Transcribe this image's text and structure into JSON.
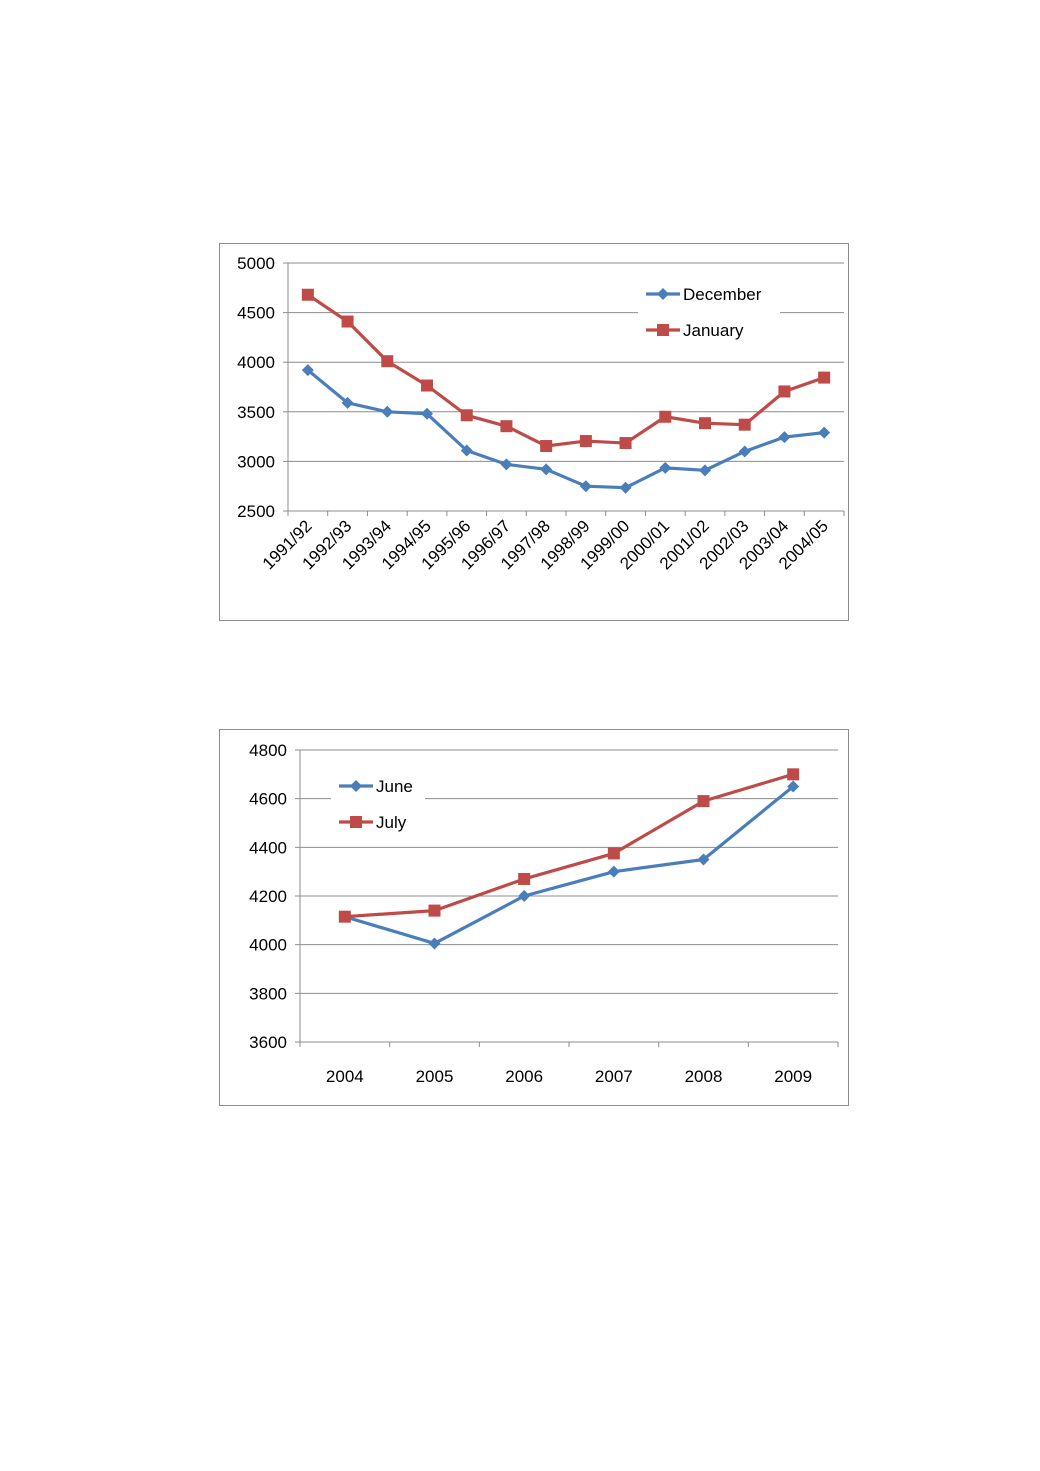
{
  "chart_data": [
    {
      "type": "line",
      "categories": [
        "1991/92",
        "1992/93",
        "1993/94",
        "1994/95",
        "1995/96",
        "1996/97",
        "1997/98",
        "1998/99",
        "1999/00",
        "2000/01",
        "2001/02",
        "2002/03",
        "2003/04",
        "2004/05"
      ],
      "series": [
        {
          "name": "December",
          "color": "#4a7ebb",
          "marker": "diamond",
          "values": [
            3920,
            3590,
            3500,
            3480,
            3110,
            2970,
            2920,
            2750,
            2735,
            2935,
            2910,
            3100,
            3245,
            3290
          ]
        },
        {
          "name": "January",
          "color": "#be4b48",
          "marker": "square",
          "values": [
            4680,
            4410,
            4010,
            3765,
            3465,
            3355,
            3155,
            3205,
            3185,
            3450,
            3385,
            3370,
            3705,
            3845
          ]
        }
      ],
      "ylim": [
        2500,
        5000
      ],
      "yticks": [
        2500,
        3000,
        3500,
        4000,
        4500,
        5000
      ],
      "grid": true,
      "legend_position": "top-right",
      "xlabel_rotation": "45-degree"
    },
    {
      "type": "line",
      "categories": [
        "2004",
        "2005",
        "2006",
        "2007",
        "2008",
        "2009"
      ],
      "series": [
        {
          "name": "June",
          "color": "#4a7ebb",
          "marker": "diamond",
          "values": [
            4115,
            4005,
            4200,
            4300,
            4350,
            4650
          ]
        },
        {
          "name": "July",
          "color": "#be4b48",
          "marker": "square",
          "values": [
            4115,
            4140,
            4270,
            4375,
            4590,
            4700
          ]
        }
      ],
      "ylim": [
        3600,
        4800
      ],
      "yticks": [
        3600,
        3800,
        4000,
        4200,
        4400,
        4600,
        4800
      ],
      "grid": true,
      "legend_position": "top-left"
    }
  ]
}
